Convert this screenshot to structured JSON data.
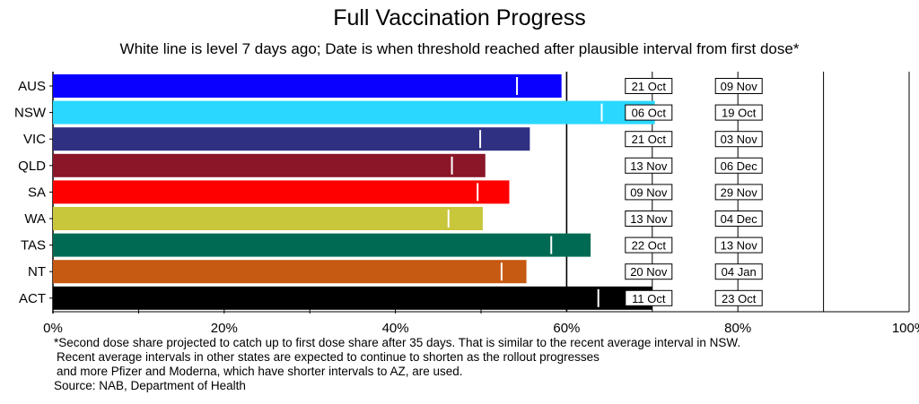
{
  "chart_data": {
    "type": "bar",
    "orientation": "horizontal",
    "title": "Full Vaccination Progress",
    "subtitle": "White line is level 7 days ago; Date is when threshold reached after plausible interval from first dose*",
    "categories": [
      "AUS",
      "NSW",
      "VIC",
      "QLD",
      "SA",
      "WA",
      "TAS",
      "NT",
      "ACT"
    ],
    "series": [
      {
        "values": [
          59.4,
          70.3,
          55.7,
          50.5,
          53.3,
          50.2,
          62.8,
          55.3,
          70.0
        ]
      }
    ],
    "level_7_days_ago": [
      54.2,
      64.1,
      49.9,
      46.6,
      49.6,
      46.2,
      58.2,
      52.4,
      63.7
    ],
    "bar_colors": [
      "#0a00ff",
      "#2ad8ff",
      "#303082",
      "#8a1628",
      "#ff0000",
      "#c8c63a",
      "#006b52",
      "#c65a12",
      "#000000"
    ],
    "threshold_dates": {
      "70%": [
        "21 Oct",
        "06 Oct",
        "21 Oct",
        "13 Nov",
        "09 Nov",
        "13 Nov",
        "22 Oct",
        "20 Nov",
        "11 Oct"
      ],
      "80%": [
        "09 Nov",
        "19 Oct",
        "03 Nov",
        "06 Dec",
        "29 Nov",
        "04 Dec",
        "13 Nov",
        "04 Jan",
        "23 Oct"
      ]
    },
    "thresholds": [
      70,
      80
    ],
    "xlim": [
      0,
      100
    ],
    "xticks": [
      0,
      20,
      40,
      60,
      80,
      100
    ],
    "xtick_labels": [
      "0%",
      "20%",
      "40%",
      "60%",
      "80%",
      "100%"
    ],
    "grid": "vertical lines at 10% steps",
    "xlabel": "",
    "ylabel": ""
  },
  "footnote": [
    "*Second dose share projected to catch up to first dose share after 35 days. That is similar to the recent average interval in NSW.",
    "Recent average intervals in other states are expected to continue to shorten as the rollout progresses",
    "and more Pfizer and Moderna, which have shorter intervals to AZ, are used.",
    "Source: NAB, Department of Health"
  ]
}
